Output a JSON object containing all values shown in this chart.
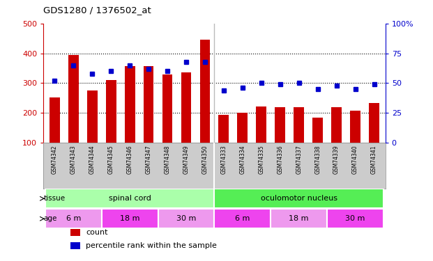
{
  "title": "GDS1280 / 1376502_at",
  "samples": [
    "GSM74342",
    "GSM74343",
    "GSM74344",
    "GSM74345",
    "GSM74346",
    "GSM74347",
    "GSM74348",
    "GSM74349",
    "GSM74350",
    "GSM74333",
    "GSM74334",
    "GSM74335",
    "GSM74336",
    "GSM74337",
    "GSM74338",
    "GSM74339",
    "GSM74340",
    "GSM74341"
  ],
  "counts": [
    252,
    395,
    275,
    310,
    358,
    358,
    330,
    335,
    445,
    193,
    200,
    222,
    218,
    220,
    185,
    218,
    208,
    232
  ],
  "percentiles": [
    52,
    65,
    58,
    60,
    65,
    62,
    60,
    68,
    68,
    44,
    46,
    50,
    49,
    50,
    45,
    48,
    45,
    49
  ],
  "ylim_left": [
    100,
    500
  ],
  "ylim_right": [
    0,
    100
  ],
  "yticks_left": [
    100,
    200,
    300,
    400,
    500
  ],
  "yticks_right": [
    0,
    25,
    50,
    75,
    100
  ],
  "bar_color": "#cc0000",
  "dot_color": "#0000cc",
  "bg_color": "#ffffff",
  "plot_bg": "#ffffff",
  "grid_color": "#000000",
  "tissue_groups": [
    {
      "label": "spinal cord",
      "start": 0,
      "end": 8,
      "color": "#aaffaa"
    },
    {
      "label": "oculomotor nucleus",
      "start": 9,
      "end": 17,
      "color": "#55ee55"
    }
  ],
  "age_groups": [
    {
      "label": "6 m",
      "start": 0,
      "end": 2,
      "color": "#ee99ee"
    },
    {
      "label": "18 m",
      "start": 3,
      "end": 5,
      "color": "#ee44ee"
    },
    {
      "label": "30 m",
      "start": 6,
      "end": 8,
      "color": "#ee99ee"
    },
    {
      "label": "6 m",
      "start": 9,
      "end": 11,
      "color": "#ee44ee"
    },
    {
      "label": "18 m",
      "start": 12,
      "end": 14,
      "color": "#ee99ee"
    },
    {
      "label": "30 m",
      "start": 15,
      "end": 17,
      "color": "#ee44ee"
    }
  ],
  "legend_items": [
    {
      "label": "count",
      "color": "#cc0000",
      "marker": "s"
    },
    {
      "label": "percentile rank within the sample",
      "color": "#0000cc",
      "marker": "s"
    }
  ],
  "bar_border_color": "#aaaaaa",
  "xlabel_color": "#cc0000",
  "ylabel_right_color": "#0000cc",
  "label_area_color": "#cccccc",
  "grid_yticks": [
    200,
    300,
    400
  ]
}
